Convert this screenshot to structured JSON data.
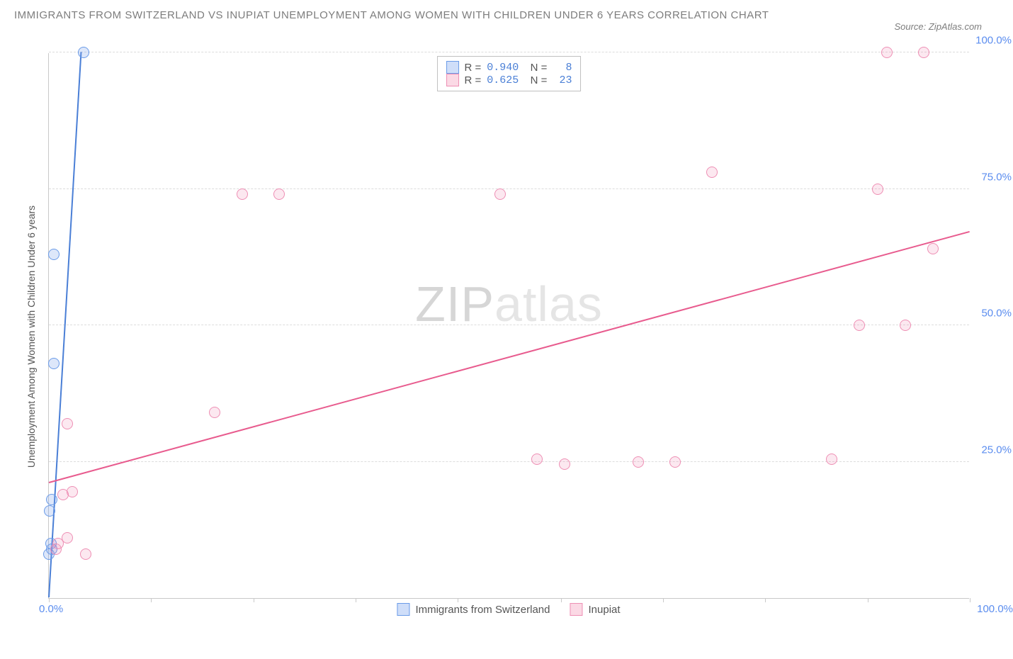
{
  "title": "IMMIGRANTS FROM SWITZERLAND VS INUPIAT UNEMPLOYMENT AMONG WOMEN WITH CHILDREN UNDER 6 YEARS CORRELATION CHART",
  "source_label": "Source: ZipAtlas.com",
  "y_axis_label": "Unemployment Among Women with Children Under 6 years",
  "watermark_a": "ZIP",
  "watermark_b": "atlas",
  "chart": {
    "type": "scatter",
    "xlim": [
      0,
      100
    ],
    "ylim": [
      0,
      100
    ],
    "x_ticks_minor": [
      0,
      11.1,
      22.2,
      33.3,
      44.4,
      55.6,
      66.7,
      77.8,
      88.9,
      100
    ],
    "y_gridlines": [
      25,
      50,
      75,
      100
    ],
    "y_tick_labels": [
      "25.0%",
      "50.0%",
      "75.0%",
      "100.0%"
    ],
    "x_tick_labels": {
      "min": "0.0%",
      "max": "100.0%"
    },
    "background_color": "#ffffff",
    "grid_color": "#dcdcdc",
    "axis_color": "#c9c9c9",
    "series": [
      {
        "key": "a",
        "name": "Immigrants from Switzerland",
        "point_fill": "rgba(118,160,237,0.25)",
        "point_stroke": "#6a9be8",
        "line_color": "#4a7fd6",
        "R": "0.940",
        "N": "8",
        "trend": {
          "x1": 0,
          "y1": 0,
          "x2": 3.5,
          "y2": 100
        },
        "points": [
          {
            "x": 0.3,
            "y": 18
          },
          {
            "x": 0.2,
            "y": 10
          },
          {
            "x": 0.0,
            "y": 8
          },
          {
            "x": 0.5,
            "y": 43
          },
          {
            "x": 0.5,
            "y": 63
          },
          {
            "x": 3.8,
            "y": 100
          },
          {
            "x": 0.3,
            "y": 9
          },
          {
            "x": 0.1,
            "y": 16
          }
        ]
      },
      {
        "key": "b",
        "name": "Inupiat",
        "point_fill": "rgba(241,130,170,0.18)",
        "point_stroke": "#ee8fb4",
        "line_color": "#e85b8e",
        "R": "0.625",
        "N": "23",
        "trend": {
          "x1": 0,
          "y1": 21,
          "x2": 100,
          "y2": 67
        },
        "points": [
          {
            "x": 1,
            "y": 10
          },
          {
            "x": 2,
            "y": 11
          },
          {
            "x": 4,
            "y": 8
          },
          {
            "x": 1.5,
            "y": 19
          },
          {
            "x": 2.5,
            "y": 19.5
          },
          {
            "x": 2,
            "y": 32
          },
          {
            "x": 18,
            "y": 34
          },
          {
            "x": 21,
            "y": 74
          },
          {
            "x": 25,
            "y": 74
          },
          {
            "x": 49,
            "y": 74
          },
          {
            "x": 53,
            "y": 25.5
          },
          {
            "x": 56,
            "y": 24.5
          },
          {
            "x": 64,
            "y": 25
          },
          {
            "x": 68,
            "y": 25
          },
          {
            "x": 72,
            "y": 78
          },
          {
            "x": 85,
            "y": 25.5
          },
          {
            "x": 88,
            "y": 50
          },
          {
            "x": 90,
            "y": 75
          },
          {
            "x": 91,
            "y": 100
          },
          {
            "x": 93,
            "y": 50
          },
          {
            "x": 95,
            "y": 100
          },
          {
            "x": 96,
            "y": 64
          },
          {
            "x": 0.8,
            "y": 9
          }
        ]
      }
    ]
  },
  "legend_bottom": [
    {
      "swatch": "a",
      "label": "Immigrants from Switzerland"
    },
    {
      "swatch": "b",
      "label": "Inupiat"
    }
  ]
}
